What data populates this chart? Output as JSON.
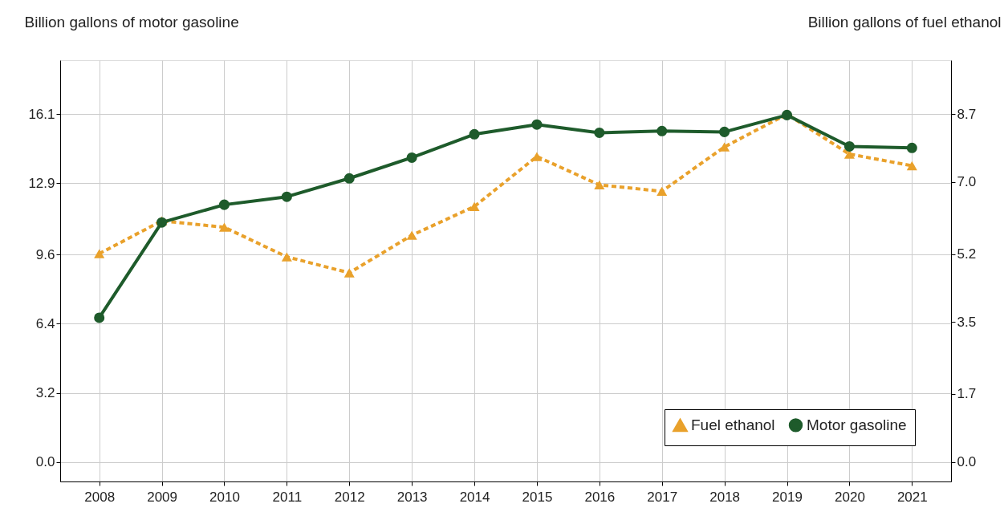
{
  "chart_data": {
    "type": "line",
    "ylabel": "Billion gallons of motor gasoline",
    "y2label": "Billion gallons of fuel ethanol",
    "categories": [
      "2008",
      "2009",
      "2010",
      "2011",
      "2012",
      "2013",
      "2014",
      "2015",
      "2016",
      "2017",
      "2018",
      "2019",
      "2020",
      "2021"
    ],
    "series": [
      {
        "name": "Fuel ethanol",
        "color": "#e9a12b",
        "axis": "y2",
        "marker": "triangle",
        "line_style": "dashed",
        "values": [
          5.21,
          6.03,
          5.87,
          5.13,
          4.73,
          5.67,
          6.39,
          7.64,
          6.93,
          6.77,
          7.88,
          8.7,
          7.7,
          7.41
        ]
      },
      {
        "name": "Motor gasoline",
        "color": "#1e5b2b",
        "marker": "circle",
        "line_style": "solid",
        "values": [
          6.68,
          11.09,
          11.91,
          12.28,
          13.13,
          14.09,
          15.17,
          15.62,
          15.24,
          15.32,
          15.28,
          16.06,
          14.61,
          14.54
        ]
      }
    ],
    "ylim": [
      -0.9,
      18.6
    ],
    "yticks": [
      {
        "value": 0,
        "label": "0.0"
      },
      3.2,
      6.4,
      9.6,
      12.9,
      16.1
    ],
    "y2lim": [
      -0.49,
      10.05
    ],
    "y2ticks": [
      {
        "value": 0,
        "label": "0.0"
      },
      1.7,
      3.5,
      5.2,
      {
        "value": 7,
        "label": "7.0"
      },
      8.7
    ],
    "grid": true,
    "legend": "bottom right"
  }
}
